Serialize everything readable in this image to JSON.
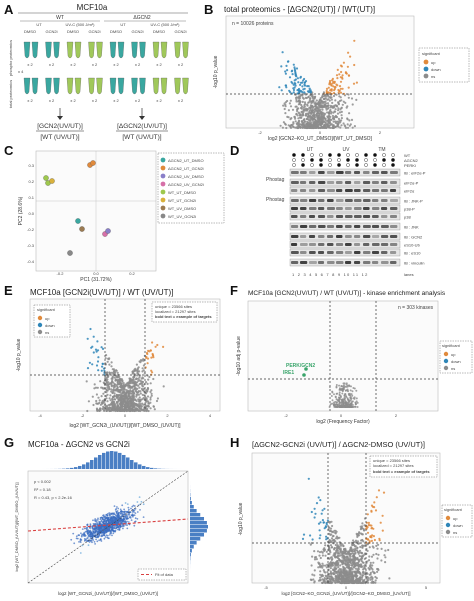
{
  "panelA": {
    "letter": "A",
    "title": "MCF10a",
    "wt": "WT",
    "dgcn2": "ΔGCN2",
    "ut1": "UT",
    "uvc1": "UV-C (500 J/m²)",
    "ut2": "UT",
    "uvc2": "UV-C (500 J/m²)",
    "conds": [
      "DMSO",
      "GCN2i",
      "DMSO",
      "GCN2i",
      "DMSO",
      "GCN2i",
      "DMSO",
      "GCN2i"
    ],
    "row1": "phospho proteomics",
    "row2": "total proteomics",
    "x2": "x 2",
    "x4": "x 4",
    "res1a": "[GCN2(UV/UT)]",
    "res1b": "[WT (UV/UT)]",
    "res2a": "[ΔGCN2(UV/UT)]",
    "res2b": "[WT (UV/UT)]"
  },
  "panelB": {
    "letter": "B",
    "title": "total proteomics - [ΔGCN2(UT)] / [WT(UT)]",
    "note": "n = 10026 proteins",
    "ylabel": "-log10 p_value",
    "xlabel": "log2 [GCN2–KO_UT_DMSO]/[WT_UT_DMSO]",
    "xticks": [
      "-2",
      "0",
      "2"
    ],
    "yticks": [
      "0",
      "2",
      "4",
      "6"
    ],
    "legend_title": "significant",
    "legend": [
      "up",
      "down",
      "ns"
    ]
  },
  "panelC": {
    "letter": "C",
    "xlabel": "PC1 (31.72%)",
    "ylabel": "PC2 (28.6%)",
    "xticks": [
      "-0.2",
      "0.0",
      "0.2"
    ],
    "yticks": [
      "-0.4",
      "-0.3",
      "-0.2",
      "0.0",
      "0.1",
      "0.2",
      "0.3"
    ],
    "legend": [
      "ΔGCN2_UT_DMSO",
      "ΔGCN2_UT_GCN2i",
      "ΔGCN2_UV_DMSO",
      "ΔGCN2_UV_GCN2i",
      "WT_UT_DMSO",
      "WT_UT_GCN2i",
      "WT_UV_DMSO",
      "WT_UV_GCN2i"
    ]
  },
  "panelD": {
    "letter": "D",
    "top_labels": [
      "UT",
      "UV",
      "TM"
    ],
    "row_labels": [
      "WT",
      "ΔGCN2",
      "PERKi"
    ],
    "blots": [
      "IB : eIF2α-P",
      "eIF2α-P",
      "eIF2α",
      "IB : JNK-P",
      "p38-P",
      "p38",
      "IB : JNK",
      "IB : GCN2",
      "eS10-Ub",
      "IB : eS10",
      "IB : vinculin"
    ],
    "phostag1": "Phostag",
    "phostag2": "Phostag",
    "lanes_label": "lanes",
    "lanes": "1 2 3 4 5 6 7 8 9 10 11 12"
  },
  "panelE": {
    "letter": "E",
    "title": "MCF10a [GCN2i(UV/UT)] / WT (UV/UT)]",
    "info1": "unique = 23566 sites",
    "info2": "localized = 21297 sites",
    "info3": "bold text = example of targets",
    "ylabel": "-log10 p_value",
    "xlabel": "log2 [WT_GCN2i_(UV/UT)]/[WT_DMSO_(UV/UT)]",
    "xticks": [
      "-4",
      "-2",
      "0",
      "2",
      "4"
    ],
    "legend_title": "significant",
    "legend": [
      "up",
      "down",
      "ns"
    ]
  },
  "panelF": {
    "letter": "F",
    "title": "MCF10a [GCN2(UV/UT) / WT (UV/UT)] - kinase enrichment analysis",
    "note": "n = 303 kinases",
    "label1": "PERK/GCN2",
    "label2": "IRE1",
    "ylabel": "-log10 adj p-value",
    "xlabel": "log2 (Frequency Factor)",
    "xticks": [
      "-2",
      "0",
      "2"
    ],
    "legend_title": "significant",
    "legend": [
      "up",
      "down",
      "ns"
    ]
  },
  "panelG": {
    "letter": "G",
    "title": "MCF10a - ΔGCN2 vs GCN2i",
    "stats": [
      "p < 0.002",
      "R² = 0.18",
      "R = 0.43, p < 2.2e-16"
    ],
    "fit": "Fit of data",
    "ylabel": "log2 [WT_DMSO_(UV/UT)]/[WT_DMSO_(UV/UT)]",
    "xlabel": "log2 [WT_GCN2i_(UV/UT)]/[WT_DMSO_(UV/UT)]"
  },
  "panelH": {
    "letter": "H",
    "title": "[ΔGCN2-GCN2i (UV/UT)] / ΔGCN2-DMSO (UV/UT)]",
    "info1": "unique = 23566 sites",
    "info2": "localized = 21297 sites",
    "info3": "bold text = example of targets",
    "ylabel": "-log10 p_value",
    "xlabel": "log2 [GCN2–KO_GCN2i_(UV/UT)]/[GCN2–KO_DMSO_(UV/UT)]",
    "xticks": [
      "-5",
      "0",
      "5"
    ],
    "legend_title": "significant",
    "legend": [
      "up",
      "down",
      "ns"
    ]
  },
  "colors": {
    "up": "#e08a3c",
    "down": "#2f86b8",
    "ns": "#8c8c8c",
    "green": "#3aa56b",
    "fit": "#d94040",
    "tubes": [
      "#3aa7a0",
      "#3aa7a0",
      "#a0c85a",
      "#a0c85a",
      "#3aa7a0",
      "#3aa7a0",
      "#a0c85a",
      "#a0c85a"
    ],
    "pca": [
      "#3aa7a0",
      "#e08a3c",
      "#8a7fc9",
      "#d670a8",
      "#9ec84d",
      "#d9b13c",
      "#9b7b52",
      "#888888"
    ]
  }
}
